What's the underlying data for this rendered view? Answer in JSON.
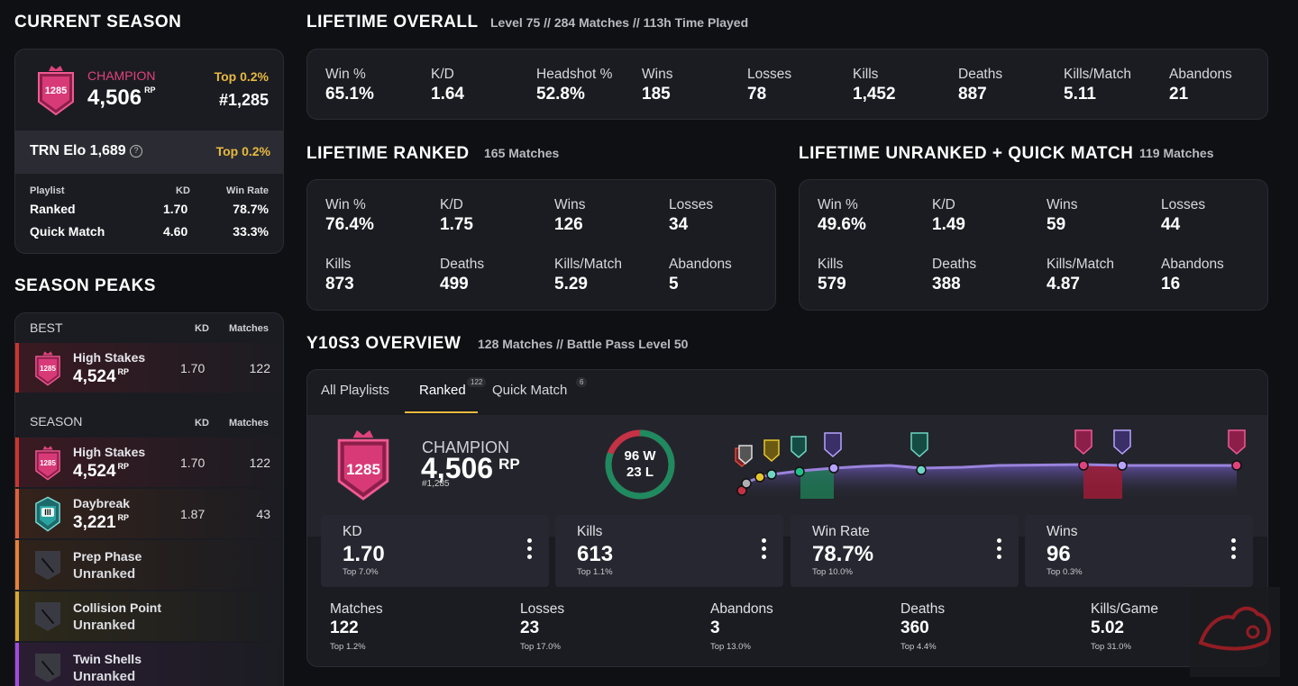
{
  "current_season": {
    "title": "CURRENT SEASON",
    "rank_label": "CHAMPION",
    "rp": "4,506",
    "rp_unit": "RP",
    "badge_number": "1285",
    "top_percent": "Top 0.2%",
    "position": "#1,285",
    "elo_label": "TRN Elo 1,689",
    "elo_top": "Top 0.2%",
    "table": {
      "headers": [
        "Playlist",
        "KD",
        "Win Rate"
      ],
      "rows": [
        {
          "playlist": "Ranked",
          "kd": "1.70",
          "win_rate": "78.7%"
        },
        {
          "playlist": "Quick Match",
          "kd": "4.60",
          "win_rate": "33.3%"
        }
      ]
    }
  },
  "season_peaks": {
    "title": "SEASON PEAKS",
    "best_header": {
      "label": "BEST",
      "kd": "KD",
      "matches": "Matches"
    },
    "best": {
      "name": "High Stakes",
      "rp": "4,524",
      "rp_unit": "RP",
      "badge_number": "1285",
      "kd": "1.70",
      "matches": "122"
    },
    "season_header": {
      "label": "SEASON",
      "kd": "KD",
      "matches": "Matches"
    },
    "seasons": [
      {
        "name": "High Stakes",
        "rp": "4,524",
        "rp_unit": "RP",
        "kd": "1.70",
        "matches": "122",
        "badge_number": "1285"
      },
      {
        "name": "Daybreak",
        "rp": "3,221",
        "rp_unit": "RP",
        "kd": "1.87",
        "matches": "43",
        "badge_number": "III"
      },
      {
        "name": "Prep Phase",
        "status": "Unranked"
      },
      {
        "name": "Collision Point",
        "status": "Unranked"
      },
      {
        "name": "Twin Shells",
        "status": "Unranked"
      }
    ]
  },
  "lifetime_overall": {
    "title": "LIFETIME OVERALL",
    "subtitle": "Level 75 // 284 Matches // 113h Time Played",
    "stats": [
      {
        "label": "Win %",
        "value": "65.1%"
      },
      {
        "label": "K/D",
        "value": "1.64"
      },
      {
        "label": "Headshot %",
        "value": "52.8%"
      },
      {
        "label": "Wins",
        "value": "185"
      },
      {
        "label": "Losses",
        "value": "78"
      },
      {
        "label": "Kills",
        "value": "1,452"
      },
      {
        "label": "Deaths",
        "value": "887"
      },
      {
        "label": "Kills/Match",
        "value": "5.11"
      },
      {
        "label": "Abandons",
        "value": "21"
      }
    ]
  },
  "lifetime_ranked": {
    "title": "LIFETIME RANKED",
    "subtitle": "165 Matches",
    "stats": [
      {
        "label": "Win %",
        "value": "76.4%"
      },
      {
        "label": "K/D",
        "value": "1.75"
      },
      {
        "label": "Wins",
        "value": "126"
      },
      {
        "label": "Losses",
        "value": "34"
      },
      {
        "label": "Kills",
        "value": "873"
      },
      {
        "label": "Deaths",
        "value": "499"
      },
      {
        "label": "Kills/Match",
        "value": "5.29"
      },
      {
        "label": "Abandons",
        "value": "5"
      }
    ]
  },
  "lifetime_unranked": {
    "title": "LIFETIME UNRANKED + QUICK MATCH",
    "subtitle": "119 Matches",
    "stats": [
      {
        "label": "Win %",
        "value": "49.6%"
      },
      {
        "label": "K/D",
        "value": "1.49"
      },
      {
        "label": "Wins",
        "value": "59"
      },
      {
        "label": "Losses",
        "value": "44"
      },
      {
        "label": "Kills",
        "value": "579"
      },
      {
        "label": "Deaths",
        "value": "388"
      },
      {
        "label": "Kills/Match",
        "value": "4.87"
      },
      {
        "label": "Abandons",
        "value": "16"
      }
    ]
  },
  "overview": {
    "title": "Y10S3 OVERVIEW",
    "subtitle": "128 Matches //  Battle Pass Level 50",
    "tabs": [
      {
        "label": "All Playlists",
        "count": ""
      },
      {
        "label": "Ranked",
        "count": "122"
      },
      {
        "label": "Quick Match",
        "count": "6"
      }
    ],
    "rank_label": "CHAMPION",
    "rp": "4,506",
    "rp_unit": "RP",
    "position": "#1,285",
    "badge_number": "1285",
    "wins": "96 W",
    "losses": "23 L",
    "win_fraction": 0.807,
    "main_stats": [
      {
        "label": "KD",
        "value": "1.70",
        "top": "Top 7.0%",
        "highlight": false
      },
      {
        "label": "Kills",
        "value": "613",
        "top": "Top 1.1%",
        "highlight": true
      },
      {
        "label": "Win Rate",
        "value": "78.7%",
        "top": "Top 10.0%",
        "highlight": false
      },
      {
        "label": "Wins",
        "value": "96",
        "top": "Top 0.3%",
        "highlight": true
      }
    ],
    "secondary_stats": [
      {
        "label": "Matches",
        "value": "122",
        "top": "Top 1.2%",
        "highlight": true
      },
      {
        "label": "Losses",
        "value": "23",
        "top": "Top 17.0%",
        "highlight": false
      },
      {
        "label": "Abandons",
        "value": "3",
        "top": "Top 13.0%",
        "highlight": false
      },
      {
        "label": "Deaths",
        "value": "360",
        "top": "Top 4.4%",
        "highlight": true
      },
      {
        "label": "Kills/Game",
        "value": "5.02",
        "top": "Top 31.0%",
        "highlight": false
      }
    ]
  },
  "colors": {
    "champion": "#e0427c",
    "gold": "#e8b93f",
    "win_ring": "#1f8a5f",
    "loss_ring": "#c43245",
    "purple": "#9a83dd"
  }
}
